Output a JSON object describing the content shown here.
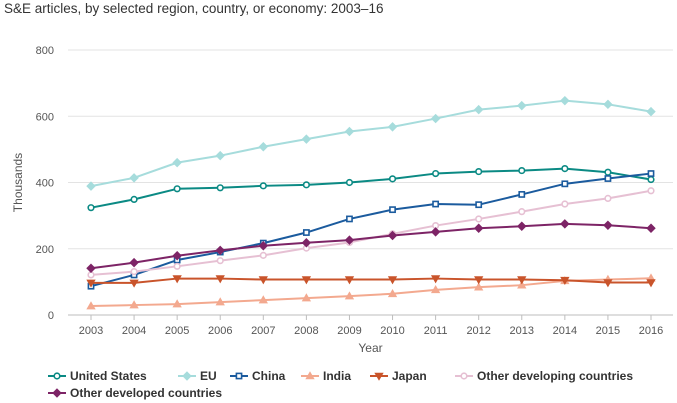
{
  "chart_data": {
    "type": "line",
    "title": "S&E articles, by selected region, country, or economy: 2003–16",
    "xlabel": "Year",
    "ylabel": "Thousands",
    "ylim": [
      0,
      800
    ],
    "yticks": [
      0,
      200,
      400,
      600,
      800
    ],
    "x": [
      "2003",
      "2004",
      "2005",
      "2006",
      "2007",
      "2008",
      "2009",
      "2010",
      "2011",
      "2012",
      "2013",
      "2014",
      "2015",
      "2016"
    ],
    "grid": true,
    "legend_position": "bottom",
    "series": [
      {
        "name": "United States",
        "color": "#0b8a84",
        "marker": "circle",
        "values": [
          324,
          349,
          381,
          384,
          390,
          393,
          400,
          411,
          427,
          433,
          436,
          442,
          431,
          409
        ]
      },
      {
        "name": "EU",
        "color": "#a6dcdc",
        "marker": "diamond",
        "values": [
          389,
          414,
          460,
          481,
          508,
          531,
          554,
          568,
          593,
          620,
          632,
          647,
          636,
          614
        ]
      },
      {
        "name": "China",
        "color": "#1b5b9e",
        "marker": "square",
        "values": [
          87,
          121,
          166,
          190,
          217,
          249,
          290,
          318,
          335,
          333,
          364,
          396,
          412,
          427
        ]
      },
      {
        "name": "India",
        "color": "#f3a98f",
        "marker": "triangle-up",
        "values": [
          27,
          30,
          33,
          39,
          45,
          51,
          57,
          64,
          76,
          84,
          90,
          103,
          107,
          111
        ]
      },
      {
        "name": "Japan",
        "color": "#c9542b",
        "marker": "triangle-down",
        "values": [
          97,
          97,
          110,
          110,
          107,
          107,
          107,
          107,
          110,
          107,
          107,
          105,
          98,
          98
        ]
      },
      {
        "name": "Other developing countries",
        "color": "#e6c0d3",
        "marker": "circle",
        "values": [
          121,
          131,
          147,
          164,
          180,
          202,
          219,
          245,
          270,
          290,
          312,
          335,
          352,
          375
        ]
      },
      {
        "name": "Other developed countries",
        "color": "#7d2466",
        "marker": "diamond",
        "values": [
          141,
          158,
          179,
          195,
          209,
          218,
          226,
          240,
          251,
          262,
          268,
          275,
          271,
          262
        ]
      }
    ]
  }
}
